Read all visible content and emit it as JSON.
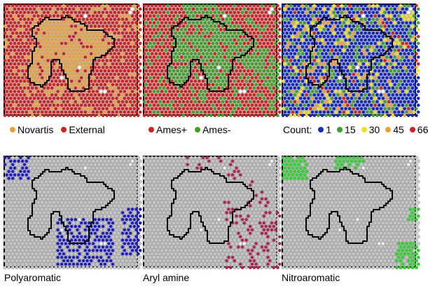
{
  "panels": [
    {
      "id": "source",
      "legend_items": [
        {
          "label": "Novartis",
          "color": "#f0a030"
        },
        {
          "label": "External",
          "color": "#d42020"
        }
      ]
    },
    {
      "id": "ames",
      "legend_items": [
        {
          "label": "Ames+",
          "color": "#d42020"
        },
        {
          "label": "Ames-",
          "color": "#40a020"
        }
      ]
    },
    {
      "id": "count",
      "legend_prefix": "Count:",
      "legend_items": [
        {
          "label": "1",
          "color": "#1428c8"
        },
        {
          "label": "15",
          "color": "#3ca030"
        },
        {
          "label": "30",
          "color": "#f0e020"
        },
        {
          "label": "45",
          "color": "#f0a030"
        },
        {
          "label": "66",
          "color": "#d42020"
        }
      ]
    },
    {
      "id": "polyaromatic",
      "caption": "Polyaromatic",
      "highlight_color": "#1a1ad0"
    },
    {
      "id": "arylamine",
      "caption": "Aryl amine",
      "highlight_color": "#b81e50"
    },
    {
      "id": "nitroaromatic",
      "caption": "Nitroaromatic",
      "highlight_color": "#22dd22"
    }
  ],
  "colors": {
    "map_background": "#b5b5b5",
    "empty_cell": "#ffffff",
    "neutral_cell": "#c8c8c8",
    "boundary": "#000000"
  }
}
